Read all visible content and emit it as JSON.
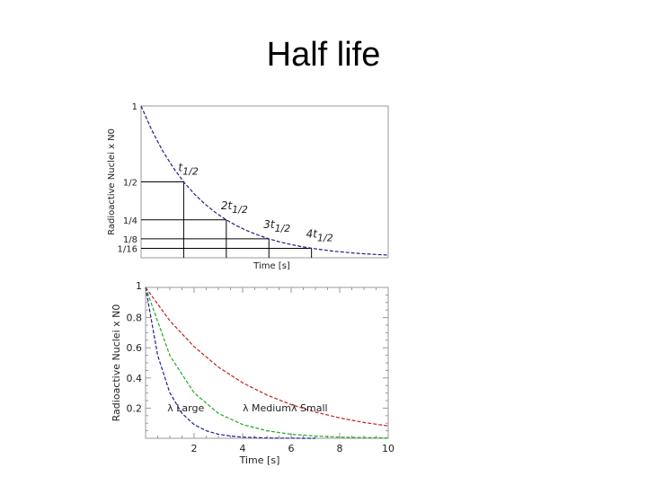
{
  "slide": {
    "title": "Half life"
  },
  "chart_data": [
    {
      "type": "line",
      "title": "",
      "xlabel": "Time [s]",
      "ylabel": "Radioactive Nuclei x N0",
      "xlim": [
        0,
        5.8
      ],
      "ylim": [
        0,
        1
      ],
      "grid": false,
      "yticks": [
        {
          "label": "1",
          "value": 1
        },
        {
          "label": "1/2",
          "value": 0.5
        },
        {
          "label": "1/4",
          "value": 0.25
        },
        {
          "label": "1/8",
          "value": 0.125
        },
        {
          "label": "1/16",
          "value": 0.0625
        }
      ],
      "series": [
        {
          "color": "#1e1e8c",
          "decay_constant": 0.693,
          "x": [
            0,
            0.25,
            0.5,
            0.75,
            1,
            1.25,
            1.5,
            1.75,
            2,
            2.25,
            2.5,
            2.75,
            3,
            3.25,
            3.5,
            3.75,
            4,
            4.25,
            4.5,
            4.75,
            5,
            5.25,
            5.5,
            5.8
          ],
          "y": [
            1,
            0.841,
            0.707,
            0.595,
            0.5,
            0.42,
            0.354,
            0.297,
            0.25,
            0.21,
            0.177,
            0.149,
            0.125,
            0.105,
            0.088,
            0.074,
            0.0625,
            0.053,
            0.044,
            0.037,
            0.031,
            0.026,
            0.022,
            0.018
          ]
        }
      ],
      "annotations": [
        {
          "base": "t",
          "sub": "1/2",
          "x": 1,
          "y": 0.5
        },
        {
          "base": "2t",
          "sub": "1/2",
          "x": 2,
          "y": 0.25
        },
        {
          "base": "3t",
          "sub": "1/2",
          "x": 3,
          "y": 0.125
        },
        {
          "base": "4t",
          "sub": "1/2",
          "x": 4,
          "y": 0.0625
        }
      ]
    },
    {
      "type": "line",
      "title": "",
      "xlabel": "Time [s]",
      "ylabel": "Radioactive Nuclei x N0",
      "xlim": [
        0,
        10
      ],
      "ylim": [
        0,
        1
      ],
      "grid": false,
      "xticks": [
        "2",
        "4",
        "6",
        "8",
        "10"
      ],
      "yticks": [
        "1",
        "0.8",
        "0.6",
        "0.4",
        "0.2"
      ],
      "series": [
        {
          "name": "λ Large",
          "color": "#1e1e9a",
          "decay_constant": 1.2,
          "x": [
            0,
            0.5,
            1,
            1.5,
            2,
            2.5,
            3,
            3.5,
            4,
            4.5,
            5,
            5.5,
            6,
            6.5,
            7
          ],
          "y": [
            1,
            0.549,
            0.301,
            0.165,
            0.091,
            0.05,
            0.027,
            0.015,
            0.008,
            0.005,
            0.002,
            0.001,
            0.001,
            0,
            0
          ]
        },
        {
          "name": "λ Medium",
          "color": "#22aa22",
          "decay_constant": 0.6,
          "x": [
            0,
            1,
            2,
            3,
            4,
            5,
            6,
            7,
            8,
            9,
            10
          ],
          "y": [
            1,
            0.549,
            0.301,
            0.165,
            0.091,
            0.05,
            0.027,
            0.015,
            0.008,
            0.005,
            0.002
          ]
        },
        {
          "name": "λ Small",
          "color": "#c02020",
          "decay_constant": 0.25,
          "x": [
            0,
            1,
            2,
            3,
            4,
            5,
            6,
            7,
            8,
            9,
            10
          ],
          "y": [
            1,
            0.779,
            0.607,
            0.472,
            0.368,
            0.287,
            0.223,
            0.174,
            0.135,
            0.105,
            0.082
          ]
        }
      ]
    }
  ]
}
